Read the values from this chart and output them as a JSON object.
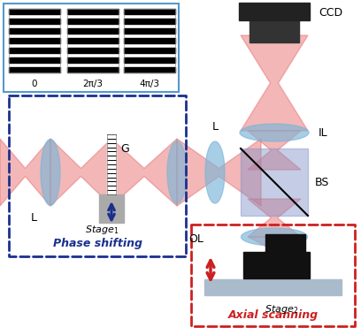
{
  "fig_width": 4.08,
  "fig_height": 3.79,
  "bg_color": "#ffffff",
  "beam_color": "#e87070",
  "lens_color": "#7ab5d8",
  "lens_alpha": 0.65,
  "bs_color": "#8090c8",
  "bs_alpha": 0.45,
  "fringe_box_color": "#5599cc",
  "phase_box_color": "#1a3090",
  "axial_box_color": "#cc2020",
  "dark_color": "#111111",
  "mount_color": "#aaaaaa",
  "stage_color": "#aabccc",
  "fringe_labels": [
    "0",
    "2π/3",
    "4π/3"
  ],
  "phase_label": "Phase shifting",
  "axial_label": "Axial scanning",
  "stage1_label": "Stage",
  "stage2_label": "Stage"
}
